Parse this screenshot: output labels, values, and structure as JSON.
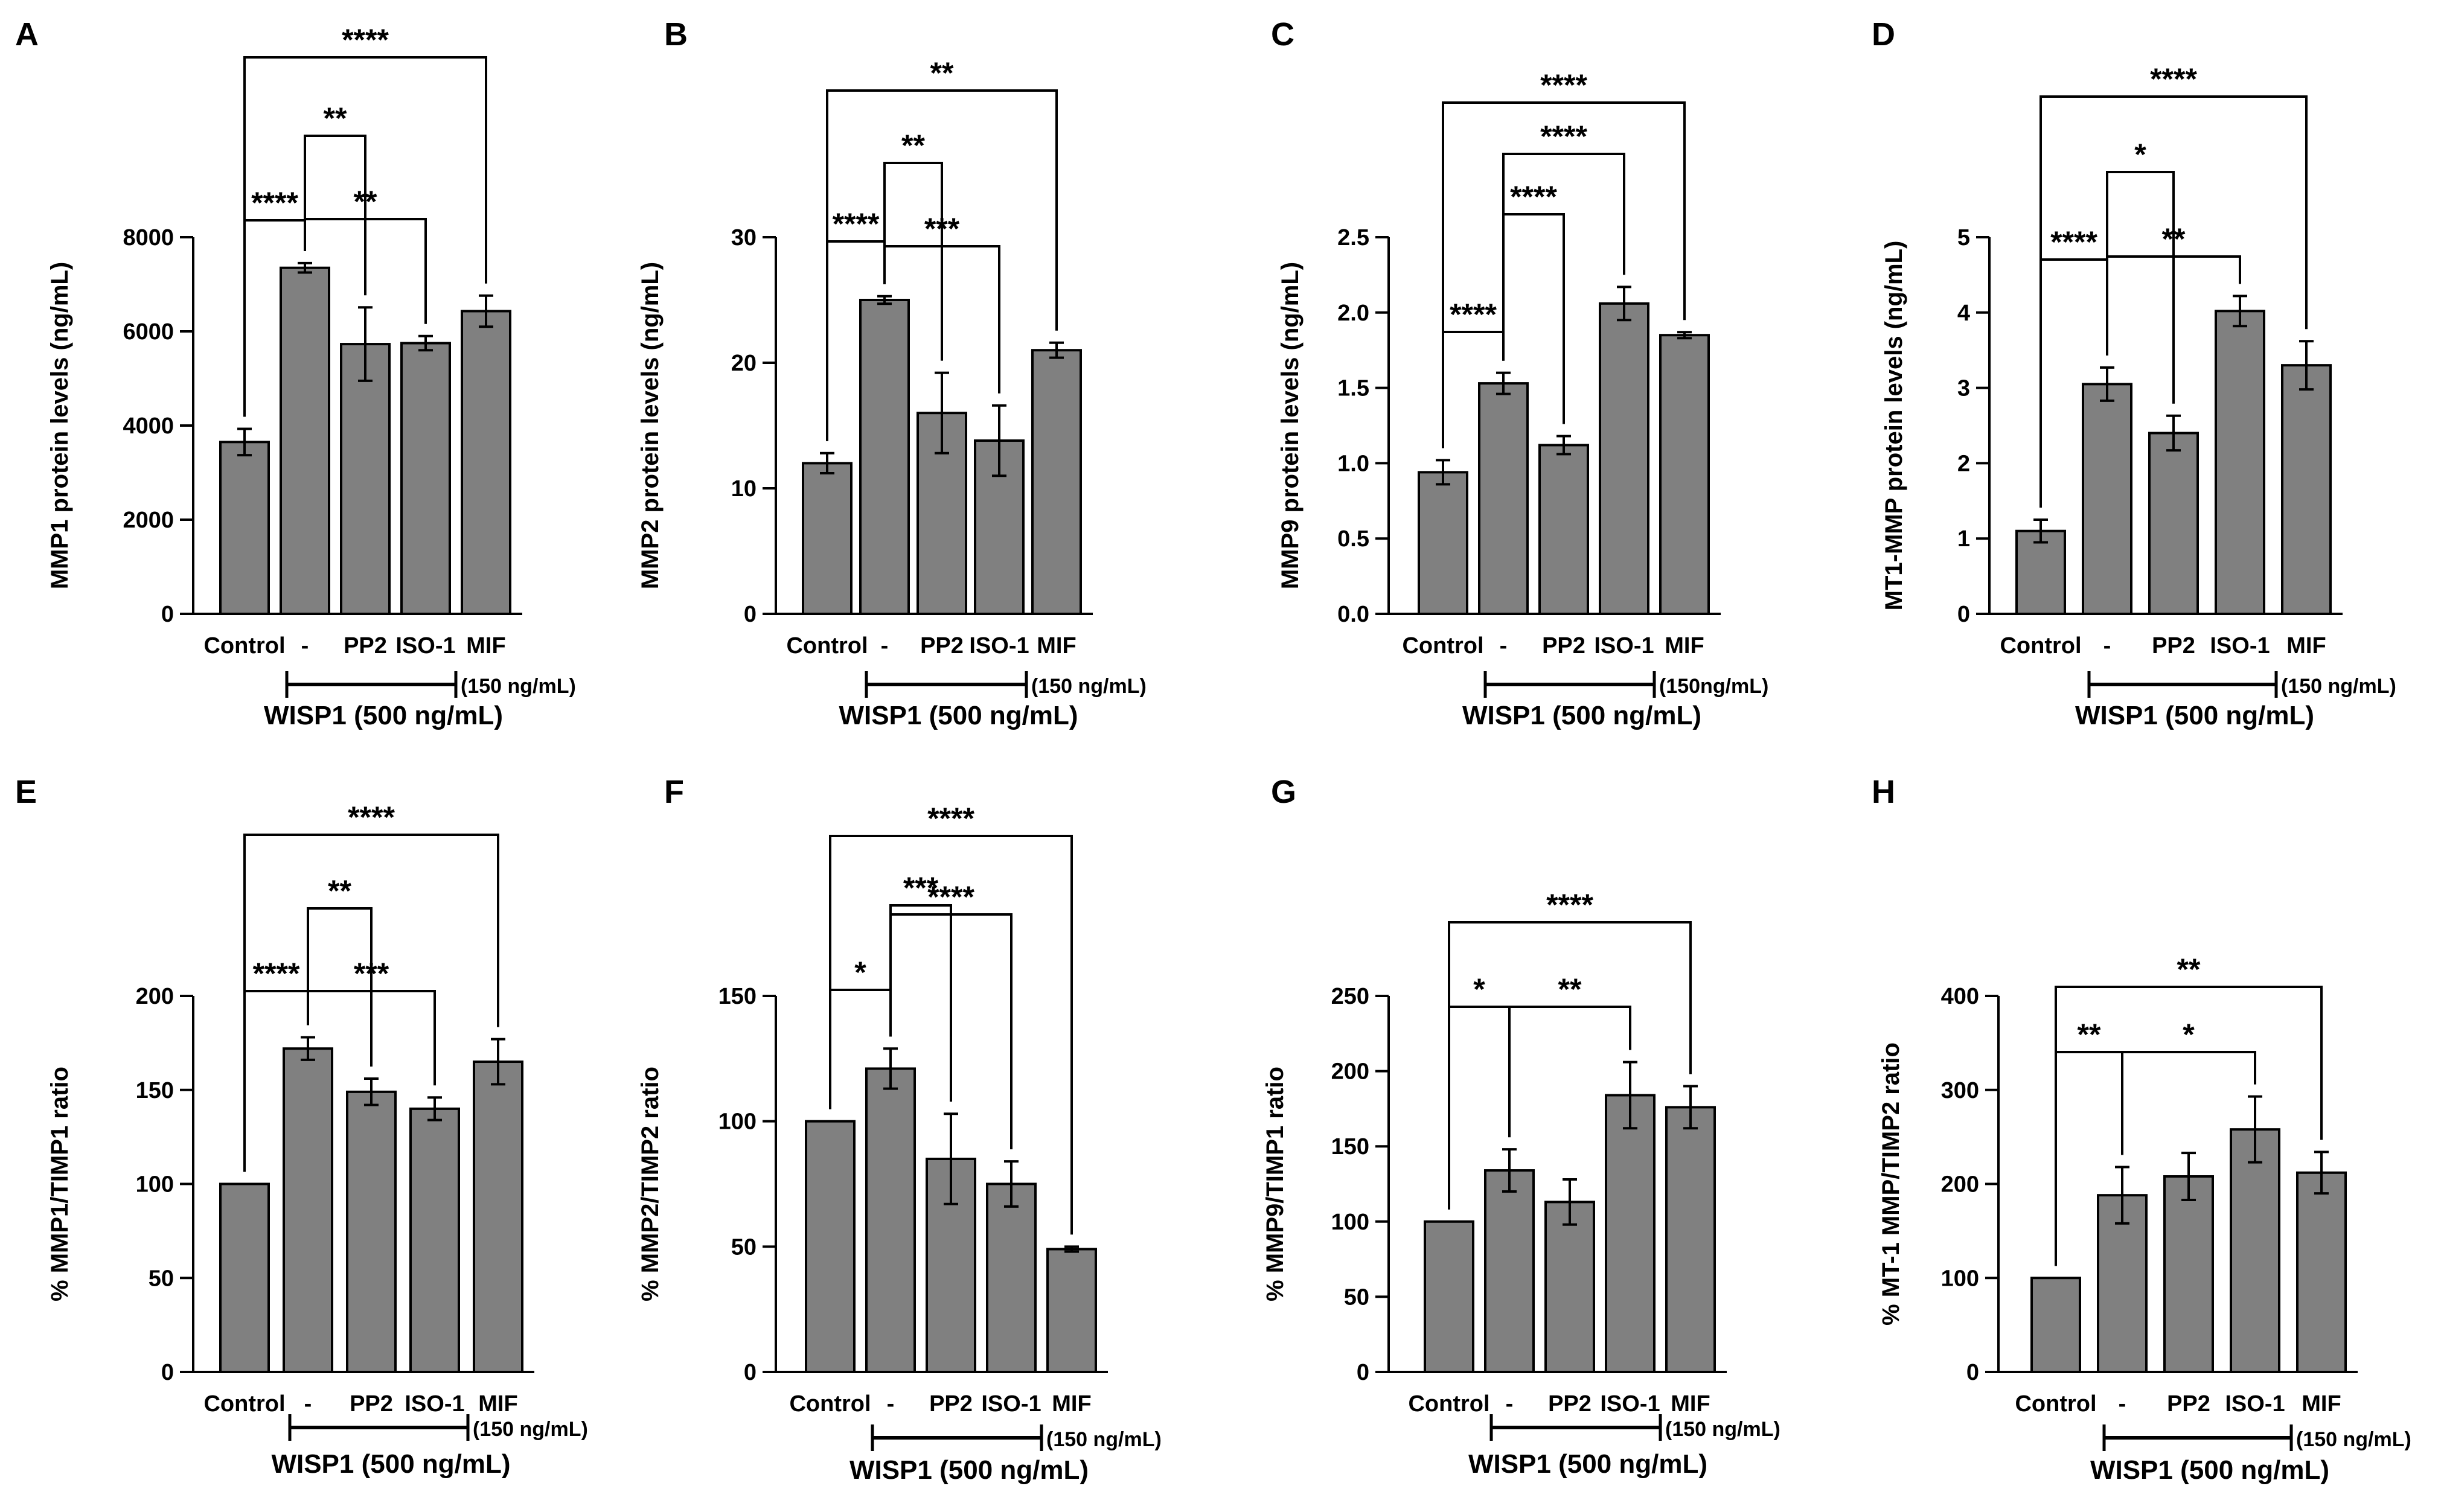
{
  "colors": {
    "bar": "#808080",
    "axis": "#000000",
    "background": "#ffffff"
  },
  "chart_data": [
    {
      "panel": "A",
      "type": "bar",
      "categories": [
        "Control",
        "-",
        "PP2",
        "ISO-1",
        "MIF"
      ],
      "values": [
        3650,
        7350,
        5730,
        5750,
        6430
      ],
      "errors": [
        280,
        100,
        780,
        150,
        330
      ],
      "ylabel": "MMP1 protein levels (ng/mL)",
      "ylim": [
        0,
        8000
      ],
      "yticks": [
        "0",
        "2000",
        "4000",
        "6000",
        "8000"
      ],
      "wisp_label": "WISP1 (500 ng/mL)",
      "mif_label": "(150 ng/mL)",
      "significance": [
        {
          "from": 0,
          "to": 1,
          "label": "****"
        },
        {
          "from": 1,
          "to": 2,
          "label": "**"
        },
        {
          "from": 1,
          "to": 3,
          "label": "**"
        },
        {
          "from": 0,
          "to": 4,
          "label": "****"
        }
      ]
    },
    {
      "panel": "B",
      "type": "bar",
      "categories": [
        "Control",
        "-",
        "PP2",
        "ISO-1",
        "MIF"
      ],
      "values": [
        12.0,
        25.0,
        16.0,
        13.8,
        21.0
      ],
      "errors": [
        0.8,
        0.3,
        3.2,
        2.8,
        0.6
      ],
      "ylabel": "MMP2 protein levels (ng/mL)",
      "ylim": [
        0,
        30
      ],
      "yticks": [
        "0",
        "10",
        "20",
        "30"
      ],
      "wisp_label": "WISP1 (500 ng/mL)",
      "mif_label": "(150 ng/mL)",
      "significance": [
        {
          "from": 0,
          "to": 1,
          "label": "****"
        },
        {
          "from": 1,
          "to": 2,
          "label": "**"
        },
        {
          "from": 1,
          "to": 3,
          "label": "***"
        },
        {
          "from": 0,
          "to": 4,
          "label": "**"
        }
      ]
    },
    {
      "panel": "C",
      "type": "bar",
      "categories": [
        "Control",
        "-",
        "PP2",
        "ISO-1",
        "MIF"
      ],
      "values": [
        0.94,
        1.53,
        1.12,
        2.06,
        1.85
      ],
      "errors": [
        0.08,
        0.07,
        0.06,
        0.11,
        0.02
      ],
      "ylabel": "MMP9 protein levels (ng/mL)",
      "ylim": [
        0,
        2.5
      ],
      "yticks": [
        "0.0",
        "0.5",
        "1.0",
        "1.5",
        "2.0",
        "2.5"
      ],
      "wisp_label": "WISP1 (500 ng/mL)",
      "mif_label": "(150ng/mL)",
      "significance": [
        {
          "from": 0,
          "to": 1,
          "label": "****"
        },
        {
          "from": 1,
          "to": 2,
          "label": "****"
        },
        {
          "from": 1,
          "to": 3,
          "label": "****"
        },
        {
          "from": 0,
          "to": 4,
          "label": "****"
        }
      ]
    },
    {
      "panel": "D",
      "type": "bar",
      "categories": [
        "Control",
        "-",
        "PP2",
        "ISO-1",
        "MIF"
      ],
      "values": [
        1.1,
        3.05,
        2.4,
        4.02,
        3.3
      ],
      "errors": [
        0.15,
        0.22,
        0.23,
        0.2,
        0.32
      ],
      "ylabel": "MT1-MMP protein levels (ng/mL)",
      "ylim": [
        0,
        5
      ],
      "yticks": [
        "0",
        "1",
        "2",
        "3",
        "4",
        "5"
      ],
      "wisp_label": "WISP1 (500 ng/mL)",
      "mif_label": "(150 ng/mL)",
      "significance": [
        {
          "from": 0,
          "to": 1,
          "label": "****"
        },
        {
          "from": 1,
          "to": 2,
          "label": "*"
        },
        {
          "from": 1,
          "to": 3,
          "label": "**"
        },
        {
          "from": 0,
          "to": 4,
          "label": "****"
        }
      ]
    },
    {
      "panel": "E",
      "type": "bar",
      "categories": [
        "Control",
        "-",
        "PP2",
        "ISO-1",
        "MIF"
      ],
      "values": [
        100,
        172,
        149,
        140,
        165
      ],
      "errors": [
        0,
        6,
        7,
        6,
        12
      ],
      "ylabel": "% MMP1/TIMP1 ratio",
      "ylim": [
        0,
        200
      ],
      "yticks": [
        "0",
        "50",
        "100",
        "150",
        "200"
      ],
      "wisp_label": "WISP1 (500 ng/mL)",
      "mif_label": "(150 ng/mL)",
      "significance": [
        {
          "from": 0,
          "to": 1,
          "label": "****"
        },
        {
          "from": 1,
          "to": 2,
          "label": "**"
        },
        {
          "from": 1,
          "to": 3,
          "label": "***"
        },
        {
          "from": 0,
          "to": 4,
          "label": "****"
        }
      ]
    },
    {
      "panel": "F",
      "type": "bar",
      "categories": [
        "Control",
        "-",
        "PP2",
        "ISO-1",
        "MIF"
      ],
      "values": [
        100,
        121,
        85,
        75,
        49
      ],
      "errors": [
        0,
        8,
        18,
        9,
        1
      ],
      "ylabel": "% MMP2/TIMP2 ratio",
      "ylim": [
        0,
        150
      ],
      "yticks": [
        "0",
        "50",
        "100",
        "150"
      ],
      "wisp_label": "WISP1 (500 ng/mL)",
      "mif_label": "(150 ng/mL)",
      "significance": [
        {
          "from": 0,
          "to": 1,
          "label": "*"
        },
        {
          "from": 1,
          "to": 2,
          "label": "***"
        },
        {
          "from": 1,
          "to": 3,
          "label": "****"
        },
        {
          "from": 0,
          "to": 4,
          "label": "****"
        }
      ]
    },
    {
      "panel": "G",
      "type": "bar",
      "categories": [
        "Control",
        "-",
        "PP2",
        "ISO-1",
        "MIF"
      ],
      "values": [
        100,
        134,
        113,
        184,
        176
      ],
      "errors": [
        0,
        14,
        15,
        22,
        14
      ],
      "ylabel": "% MMP9/TIMP1 ratio",
      "ylim": [
        0,
        250
      ],
      "yticks": [
        "0",
        "50",
        "100",
        "150",
        "200",
        "250"
      ],
      "wisp_label": "WISP1 (500 ng/mL)",
      "mif_label": "(150 ng/mL)",
      "significance": [
        {
          "from": 0,
          "to": 1,
          "label": "*"
        },
        {
          "from": 1,
          "to": 3,
          "label": "**"
        },
        {
          "from": 0,
          "to": 4,
          "label": "****"
        }
      ]
    },
    {
      "panel": "H",
      "type": "bar",
      "categories": [
        "Control",
        "-",
        "PP2",
        "ISO-1",
        "MIF"
      ],
      "values": [
        100,
        188,
        208,
        258,
        212
      ],
      "errors": [
        0,
        30,
        25,
        35,
        22
      ],
      "ylabel": "% MT-1 MMP/TIMP2 ratio",
      "ylim": [
        0,
        400
      ],
      "yticks": [
        "0",
        "100",
        "200",
        "300",
        "400"
      ],
      "wisp_label": "WISP1 (500 ng/mL)",
      "mif_label": "(150 ng/mL)",
      "significance": [
        {
          "from": 0,
          "to": 1,
          "label": "**"
        },
        {
          "from": 1,
          "to": 3,
          "label": "*"
        },
        {
          "from": 0,
          "to": 4,
          "label": "**"
        }
      ]
    }
  ]
}
